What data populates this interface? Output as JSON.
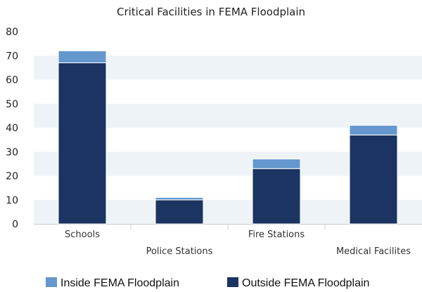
{
  "chart_data": {
    "type": "bar",
    "stacked": true,
    "title": "Critical Facilities in FEMA Floodplain",
    "categories": [
      "Schools",
      "Police Stations",
      "Fire Stations",
      "Medical Facilites"
    ],
    "series": [
      {
        "name": "Outside FEMA Floodplain",
        "values": [
          67,
          10,
          23,
          37
        ],
        "color": "#1b3461"
      },
      {
        "name": "Inside FEMA Floodplain",
        "values": [
          5,
          1,
          4,
          4
        ],
        "color": "#6497cd"
      }
    ],
    "ylim": [
      0,
      80
    ],
    "yticks": [
      0,
      10,
      20,
      30,
      40,
      50,
      60,
      70,
      80
    ],
    "legend_position": "bottom",
    "band_color": "#edf3f7"
  }
}
